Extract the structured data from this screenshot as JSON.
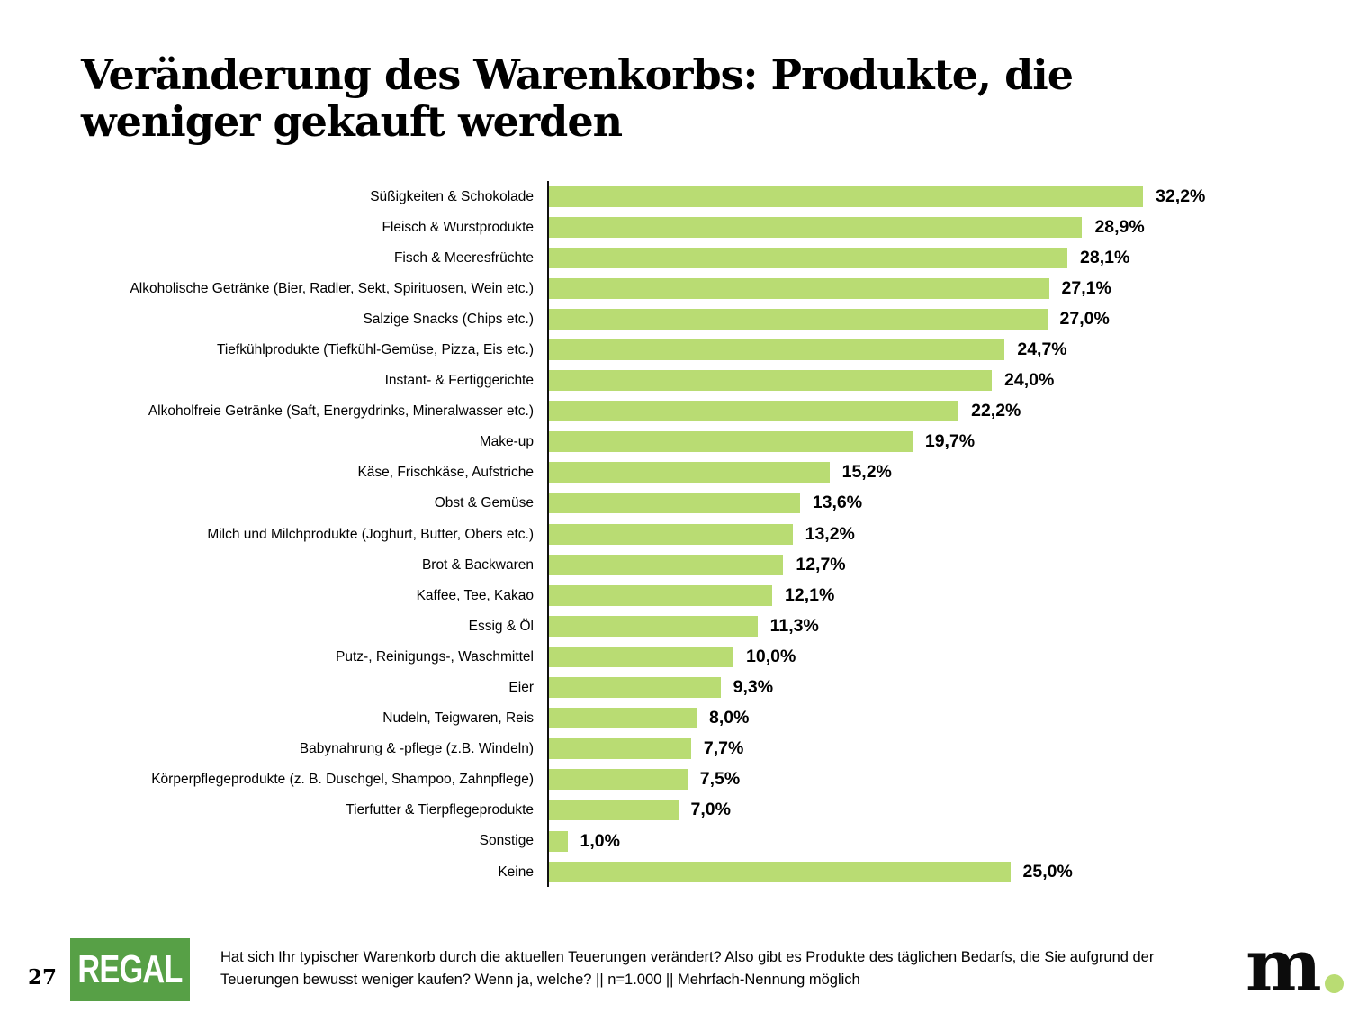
{
  "page": {
    "title": "Veränderung des Warenkorbs: Produkte, die weniger gekauft werden",
    "page_number": "27",
    "footnote": "Hat sich Ihr typischer Warenkorb durch die aktuellen Teuerungen verändert? Also gibt es Produkte des täglichen Bedarfs, die Sie aufgrund der Teuerungen bewusst weniger kaufen? Wenn ja, welche? || n=1.000 || Mehrfach-Nennung möglich",
    "logos": {
      "regal": "REGAL",
      "marketagent_m": "m"
    }
  },
  "colors": {
    "bar": "#b9dc73",
    "regal_green": "#57a046",
    "dot_green": "#b9dc73",
    "axis": "#111111",
    "text": "#000000"
  },
  "chart_data": {
    "type": "bar",
    "orientation": "horizontal",
    "title": "Veränderung des Warenkorbs: Produkte, die weniger gekauft werden",
    "unit": "%",
    "xlim": [
      0,
      35
    ],
    "grid": false,
    "legend": false,
    "categories": [
      "Süßigkeiten & Schokolade",
      "Fleisch & Wurstprodukte",
      "Fisch & Meeresfrüchte",
      "Alkoholische Getränke (Bier, Radler, Sekt, Spirituosen, Wein etc.)",
      "Salzige Snacks (Chips etc.)",
      "Tiefkühlprodukte (Tiefkühl-Gemüse, Pizza, Eis etc.)",
      "Instant- & Fertiggerichte",
      "Alkoholfreie Getränke (Saft, Energydrinks, Mineralwasser etc.)",
      "Make-up",
      "Käse, Frischkäse, Aufstriche",
      "Obst & Gemüse",
      "Milch und Milchprodukte (Joghurt, Butter, Obers etc.)",
      "Brot & Backwaren",
      "Kaffee, Tee, Kakao",
      "Essig & Öl",
      "Putz-, Reinigungs-, Waschmittel",
      "Eier",
      "Nudeln, Teigwaren, Reis",
      "Babynahrung & -pflege (z.B. Windeln)",
      "Körperpflegeprodukte (z. B. Duschgel, Shampoo, Zahnpflege)",
      "Tierfutter & Tierpflegeprodukte",
      "Sonstige",
      "Keine"
    ],
    "values": [
      32.2,
      28.9,
      28.1,
      27.1,
      27.0,
      24.7,
      24.0,
      22.2,
      19.7,
      15.2,
      13.6,
      13.2,
      12.7,
      12.1,
      11.3,
      10.0,
      9.3,
      8.0,
      7.7,
      7.5,
      7.0,
      1.0,
      25.0
    ],
    "value_labels": [
      "32,2%",
      "28,9%",
      "28,1%",
      "27,1%",
      "27,0%",
      "24,7%",
      "24,0%",
      "22,2%",
      "19,7%",
      "15,2%",
      "13,6%",
      "13,2%",
      "12,7%",
      "12,1%",
      "11,3%",
      "10,0%",
      "9,3%",
      "8,0%",
      "7,7%",
      "7,5%",
      "7,0%",
      "1,0%",
      "25,0%"
    ]
  }
}
